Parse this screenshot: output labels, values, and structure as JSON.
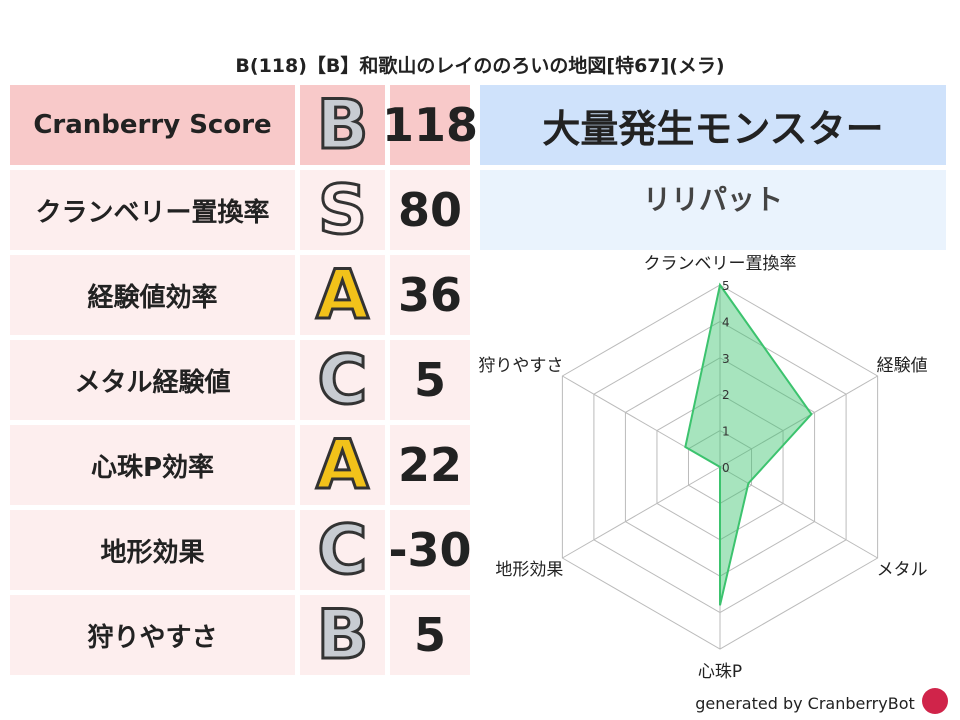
{
  "title": "B(118)【B】和歌山のレイののろいの地図[特67](メラ)",
  "table": {
    "header": {
      "label": "Cranberry Score",
      "grade": "B",
      "score": 118
    },
    "rows": [
      {
        "label": "クランベリー置換率",
        "grade": "S",
        "score": 80
      },
      {
        "label": "経験値効率",
        "grade": "A",
        "score": 36
      },
      {
        "label": "メタル経験値",
        "grade": "C",
        "score": 5
      },
      {
        "label": "心珠P効率",
        "grade": "A",
        "score": 22
      },
      {
        "label": "地形効果",
        "grade": "C",
        "score": -30
      },
      {
        "label": "狩りやすさ",
        "grade": "B",
        "score": 5
      }
    ]
  },
  "monster": {
    "heading": "大量発生モンスター",
    "name": "リリパット"
  },
  "chart_data": {
    "type": "radar",
    "categories": [
      "クランベリー置換率",
      "経験値",
      "メタル",
      "心珠P",
      "地形効果",
      "狩りやすさ"
    ],
    "values": [
      5,
      2.9,
      0.9,
      3.8,
      0,
      1.1
    ],
    "color": "#3cc36e",
    "rlim": [
      0,
      5
    ],
    "rticks": [
      0,
      1,
      2,
      3,
      4,
      5
    ],
    "grid": true
  },
  "footer": "generated by CranberryBot"
}
